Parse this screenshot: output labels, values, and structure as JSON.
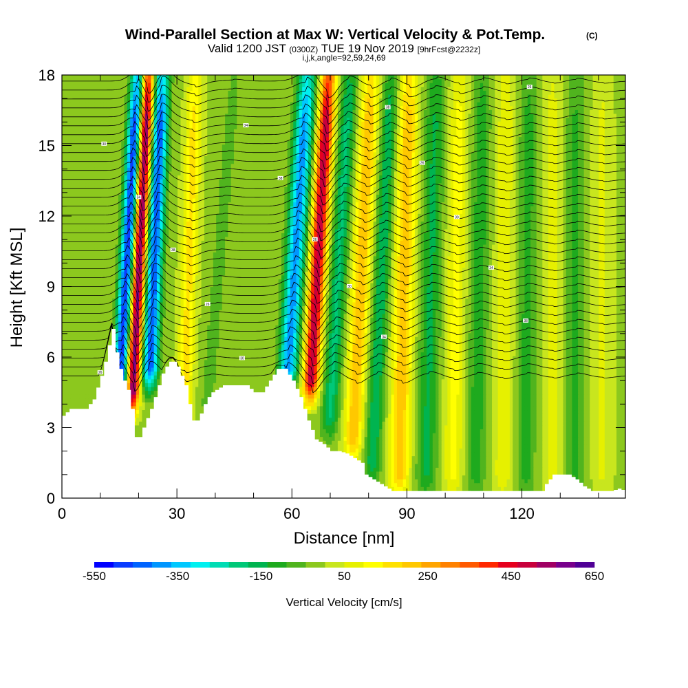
{
  "title": {
    "main": "Wind-Parallel Section at Max W: Vertical Velocity & Pot.Temp.",
    "copyright": "(C)",
    "valid_prefix": "Valid 1200 JST",
    "valid_utc": "(0300Z)",
    "valid_date": "TUE 19 Nov 2019",
    "forecast": "[9hrFcst@2232z]",
    "indices": "i,j,k,angle=92,59,24,69"
  },
  "chart_data": {
    "type": "heatmap",
    "xlabel": "Distance [nm]",
    "ylabel": "Height [Kft MSL]",
    "xlim": [
      0,
      147
    ],
    "ylim": [
      0,
      18
    ],
    "x_ticks": [
      {
        "value": 0,
        "label": "0"
      },
      {
        "value": 30,
        "label": "30"
      },
      {
        "value": 60,
        "label": "60"
      },
      {
        "value": 90,
        "label": "90"
      },
      {
        "value": 120,
        "label": "120"
      }
    ],
    "y_ticks": [
      {
        "value": 0,
        "label": "0"
      },
      {
        "value": 3,
        "label": "3"
      },
      {
        "value": 6,
        "label": "6"
      },
      {
        "value": 9,
        "label": "9"
      },
      {
        "value": 12,
        "label": "12"
      },
      {
        "value": 15,
        "label": "15"
      },
      {
        "value": 18,
        "label": "18"
      }
    ],
    "colorbar": {
      "label": "Vertical Velocity [cm/s]",
      "min": -550,
      "max": 650,
      "step": 50,
      "tick_labels": [
        {
          "value": -550,
          "label": "-550"
        },
        {
          "value": -350,
          "label": "-350"
        },
        {
          "value": -150,
          "label": "-150"
        },
        {
          "value": 50,
          "label": "50"
        },
        {
          "value": 250,
          "label": "250"
        },
        {
          "value": 450,
          "label": "450"
        },
        {
          "value": 650,
          "label": "650"
        }
      ],
      "colors": [
        "#0000ff",
        "#0a3cff",
        "#0064ff",
        "#0096ff",
        "#00c8ff",
        "#00f0f0",
        "#00dcb4",
        "#00c878",
        "#00b450",
        "#1eaa1e",
        "#50b41e",
        "#8cc81e",
        "#c8e61e",
        "#e6f000",
        "#ffff00",
        "#ffe100",
        "#ffc800",
        "#ffa500",
        "#ff8200",
        "#ff5a00",
        "#ff2800",
        "#e6001e",
        "#c8003c",
        "#a00064",
        "#78008c",
        "#500096"
      ]
    },
    "velocity_bands": [
      {
        "x": 15,
        "bottom": 4.5,
        "half_width": 1.8,
        "amplitude": -520,
        "tilt": 0.35
      },
      {
        "x": 18.5,
        "bottom": 4.5,
        "half_width": 1.6,
        "amplitude": 640,
        "tilt": 0.3
      },
      {
        "x": 23,
        "bottom": 5.5,
        "half_width": 2.0,
        "amplitude": -480,
        "tilt": 0.25
      },
      {
        "x": 32,
        "bottom": 4.0,
        "half_width": 2.0,
        "amplitude": 180,
        "tilt": 0.2
      },
      {
        "x": 38,
        "bottom": 4.0,
        "half_width": 2.2,
        "amplitude": -60,
        "tilt": 0.5
      },
      {
        "x": 59,
        "bottom": 5.5,
        "half_width": 2.4,
        "amplitude": -420,
        "tilt": 0.4
      },
      {
        "x": 65,
        "bottom": 5.0,
        "half_width": 2.0,
        "amplitude": 560,
        "tilt": 0.35
      },
      {
        "x": 70,
        "bottom": 3.5,
        "half_width": 2.2,
        "amplitude": -200,
        "tilt": 0.35
      },
      {
        "x": 76,
        "bottom": 2.5,
        "half_width": 2.4,
        "amplitude": 250,
        "tilt": 0.3
      },
      {
        "x": 81,
        "bottom": 1.5,
        "half_width": 2.2,
        "amplitude": -180,
        "tilt": 0.3
      },
      {
        "x": 88,
        "bottom": 1.0,
        "half_width": 2.6,
        "amplitude": 240,
        "tilt": 0.15
      },
      {
        "x": 95,
        "bottom": 1.0,
        "half_width": 2.6,
        "amplitude": -150,
        "tilt": 0.15
      },
      {
        "x": 102,
        "bottom": 1.0,
        "half_width": 2.4,
        "amplitude": 130,
        "tilt": 0.1
      },
      {
        "x": 108,
        "bottom": 1.0,
        "half_width": 2.4,
        "amplitude": -120,
        "tilt": 0.1
      },
      {
        "x": 115,
        "bottom": 1.0,
        "half_width": 2.4,
        "amplitude": 100,
        "tilt": 0.05
      },
      {
        "x": 121,
        "bottom": 1.0,
        "half_width": 2.4,
        "amplitude": -110,
        "tilt": 0.05
      },
      {
        "x": 128,
        "bottom": 1.0,
        "half_width": 2.4,
        "amplitude": 80,
        "tilt": 0.0
      },
      {
        "x": 134,
        "bottom": 1.0,
        "half_width": 2.4,
        "amplitude": -100,
        "tilt": 0.0
      },
      {
        "x": 141,
        "bottom": 1.0,
        "half_width": 2.4,
        "amplitude": 70,
        "tilt": 0.0
      }
    ],
    "background_velocity": 40,
    "terrain_height": [
      [
        0,
        3.5
      ],
      [
        2,
        3.8
      ],
      [
        4,
        3.8
      ],
      [
        6,
        3.8
      ],
      [
        8,
        4.2
      ],
      [
        10,
        5.2
      ],
      [
        11,
        5.8
      ],
      [
        12,
        6.5
      ],
      [
        13,
        7.2
      ],
      [
        14,
        6.2
      ],
      [
        15,
        5.5
      ],
      [
        16,
        5.0
      ],
      [
        17,
        4.6
      ],
      [
        18,
        3.8
      ],
      [
        19,
        2.6
      ],
      [
        20,
        2.6
      ],
      [
        21,
        3.0
      ],
      [
        22,
        3.4
      ],
      [
        23,
        3.8
      ],
      [
        24,
        4.3
      ],
      [
        25,
        4.8
      ],
      [
        26,
        5.3
      ],
      [
        27,
        5.6
      ],
      [
        28,
        5.8
      ],
      [
        29,
        5.8
      ],
      [
        30,
        5.6
      ],
      [
        31,
        5.2
      ],
      [
        32,
        4.8
      ],
      [
        33,
        4.0
      ],
      [
        34,
        3.3
      ],
      [
        35,
        3.3
      ],
      [
        36,
        3.6
      ],
      [
        37,
        4.0
      ],
      [
        38,
        4.3
      ],
      [
        39,
        4.5
      ],
      [
        40,
        4.6
      ],
      [
        42,
        4.8
      ],
      [
        45,
        4.8
      ],
      [
        48,
        4.8
      ],
      [
        50,
        4.5
      ],
      [
        52,
        4.5
      ],
      [
        54,
        5.0
      ],
      [
        56,
        5.5
      ],
      [
        58,
        5.5
      ],
      [
        60,
        5.0
      ],
      [
        62,
        4.3
      ],
      [
        64,
        3.3
      ],
      [
        66,
        2.5
      ],
      [
        68,
        2.3
      ],
      [
        70,
        2.0
      ],
      [
        72,
        2.0
      ],
      [
        74,
        1.9
      ],
      [
        76,
        1.7
      ],
      [
        78,
        1.5
      ],
      [
        79,
        1.0
      ],
      [
        80,
        0.9
      ],
      [
        82,
        0.7
      ],
      [
        84,
        0.5
      ],
      [
        86,
        0.3
      ],
      [
        90,
        0.3
      ],
      [
        100,
        0.3
      ],
      [
        110,
        0.3
      ],
      [
        120,
        0.3
      ],
      [
        125,
        0.3
      ],
      [
        126,
        0.6
      ],
      [
        128,
        1.0
      ],
      [
        132,
        1.0
      ],
      [
        134,
        0.8
      ],
      [
        136,
        0.5
      ],
      [
        138,
        0.3
      ],
      [
        143,
        0.3
      ],
      [
        145,
        0.4
      ],
      [
        147,
        0.3
      ]
    ],
    "isentropes": {
      "count": 34,
      "base_height": 5.2,
      "spacing": 0.38,
      "labels": [
        "26",
        "28",
        "30",
        "32",
        "34",
        "36",
        "38",
        "40"
      ]
    }
  }
}
